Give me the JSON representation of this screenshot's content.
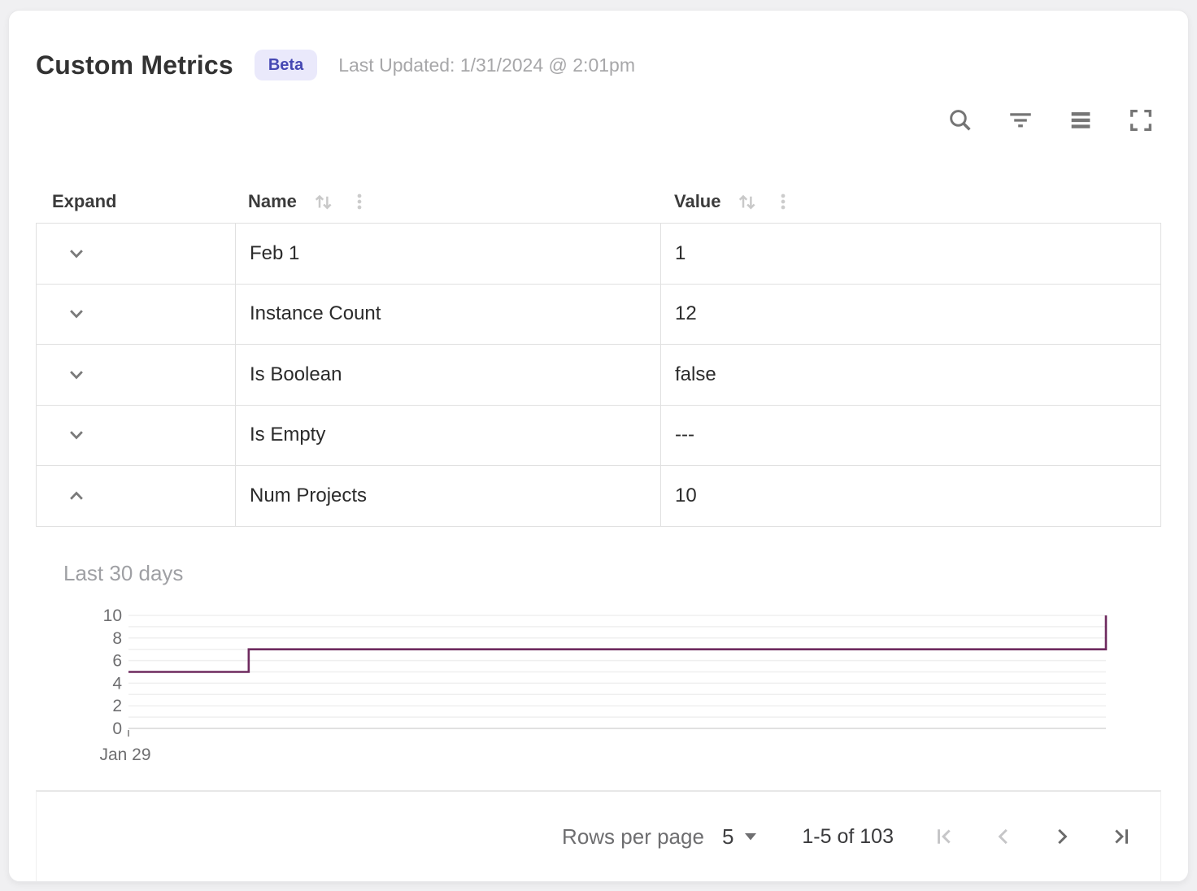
{
  "header": {
    "title": "Custom Metrics",
    "badge": "Beta",
    "last_updated": "Last Updated: 1/31/2024 @ 2:01pm"
  },
  "toolbar": {
    "icons": [
      "search-icon",
      "filter-icon",
      "density-icon",
      "fullscreen-icon"
    ]
  },
  "table": {
    "columns": [
      {
        "label": "Expand",
        "sortable": false
      },
      {
        "label": "Name",
        "sortable": true
      },
      {
        "label": "Value",
        "sortable": true
      }
    ],
    "rows": [
      {
        "name": "Feb 1",
        "value": "1",
        "expanded": false
      },
      {
        "name": "Instance Count",
        "value": "12",
        "expanded": false
      },
      {
        "name": "Is Boolean",
        "value": "false",
        "expanded": false
      },
      {
        "name": "Is Empty",
        "value": "---",
        "expanded": false
      },
      {
        "name": "Num Projects",
        "value": "10",
        "expanded": true
      }
    ]
  },
  "chart_data": {
    "type": "line",
    "line_style": "step-after",
    "title": "Last 30 days",
    "series": [
      {
        "name": "Num Projects",
        "color": "#6e2a5f",
        "step_points": [
          {
            "x_frac": 0.0,
            "value": 5
          },
          {
            "x_frac": 0.123,
            "value": 7
          },
          {
            "x_frac": 1.0,
            "value": 10
          }
        ]
      }
    ],
    "ylim": [
      0,
      10
    ],
    "y_major_ticks": [
      0,
      2,
      4,
      6,
      8,
      10
    ],
    "y_grid_step": 1,
    "x_tick_labels": [
      "Jan 29"
    ],
    "grid": true,
    "legend": false
  },
  "pagination": {
    "rows_per_page_label": "Rows per page",
    "rows_per_page_value": "5",
    "range_label": "1-5 of 103",
    "controls": [
      {
        "name": "first-page",
        "enabled": false
      },
      {
        "name": "previous-page",
        "enabled": false
      },
      {
        "name": "next-page",
        "enabled": true
      },
      {
        "name": "last-page",
        "enabled": true
      }
    ]
  },
  "colors": {
    "line": "#6e2a5f",
    "badge_bg": "#eae9fb",
    "badge_text": "#4648b3",
    "border": "#e0e0e0",
    "icon_gray": "#757575",
    "inactive_gray": "#c9c9c9"
  }
}
